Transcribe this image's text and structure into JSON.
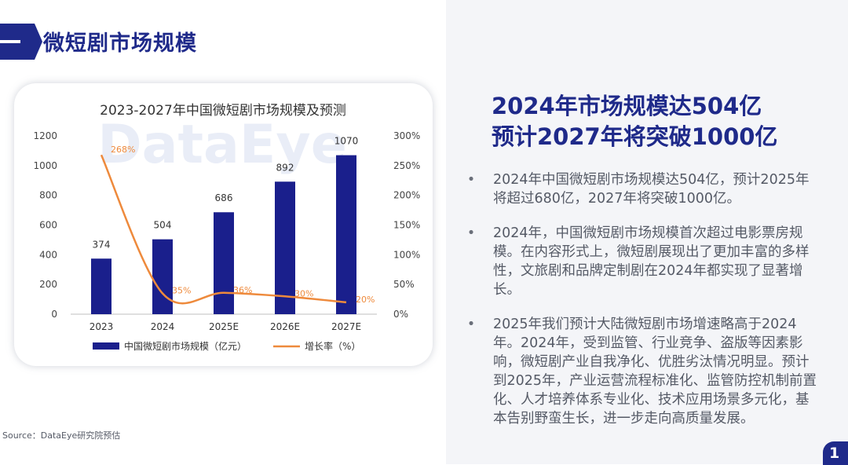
{
  "header": {
    "title": "微短剧市场规模"
  },
  "source": "Source：DataEye研究院预估",
  "headline": {
    "line1": "2024年市场规模达504亿",
    "line2": "预计2027年将突破1000亿"
  },
  "bullets": [
    "2024年中国微短剧市场规模达504亿，预计2025年将超过680亿，2027年将突破1000亿。",
    "2024年，中国微短剧市场规模首次超过电影票房规模。在内容形式上，微短剧展现出了更加丰富的多样性，文旅剧和品牌定制剧在2024年都实现了显著增长。",
    "2025年我们预计大陆微短剧市场增速略高于2024年。2024年，受到监管、行业竞争、盗版等因素影响，微短剧产业自我净化、优胜劣汰情况明显。预计到2025年，产业运营流程标准化、监管防控机制前置化、人才培养体系专业化、技术应用场景多元化，基本告别野蛮生长，进一步走向高质量发展。"
  ],
  "bullet_symbol": "•",
  "page_number": "1",
  "watermark": "DataEye",
  "chart_data": {
    "type": "bar",
    "title": "2023-2027年中国微短剧市场规模及预测",
    "categories": [
      "2023",
      "2024",
      "2025E",
      "2026E",
      "2027E"
    ],
    "series": [
      {
        "name": "中国微短剧市场规模（亿元）",
        "type": "bar",
        "axis": "left",
        "values": [
          374,
          504,
          686,
          892,
          1070
        ],
        "color": "#1a1f8c"
      },
      {
        "name": "增长率（%）",
        "type": "line",
        "axis": "right",
        "values": [
          268,
          35,
          36,
          30,
          20
        ],
        "color": "#ee8a3c"
      }
    ],
    "data_labels_bar": [
      "374",
      "504",
      "686",
      "892",
      "1070"
    ],
    "data_labels_line": [
      "268%",
      "35%",
      "36%",
      "30%",
      "20%"
    ],
    "left_axis": {
      "ylim": [
        0,
        1200
      ],
      "ticks": [
        "0",
        "200",
        "400",
        "600",
        "800",
        "1000",
        "1200"
      ]
    },
    "right_axis": {
      "ylim": [
        0,
        300
      ],
      "ticks": [
        "0%",
        "50%",
        "100%",
        "150%",
        "200%",
        "250%",
        "300%"
      ]
    },
    "legend_position": "bottom"
  }
}
